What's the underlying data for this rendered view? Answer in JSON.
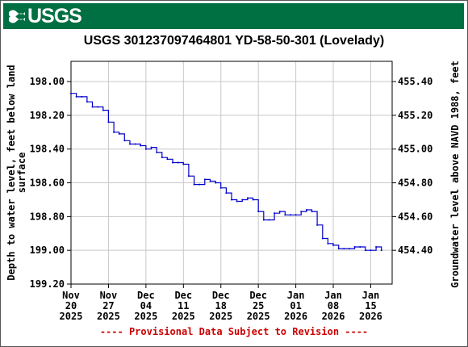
{
  "header": {
    "logo_text": "USGS",
    "bg_color": "#006f41"
  },
  "footnote": "---- Provisional Data Subject to Revision ----",
  "chart_data": {
    "type": "line",
    "title": "USGS 301237097464801 YD-58-50-301 (Lovelady)",
    "ylabel": "Depth to water level, feet below land surface",
    "y2label": "Groundwater level above NAVD 1988, feet",
    "ylim": [
      199.2,
      197.88
    ],
    "y_inverted": true,
    "y_ticks": [
      "198.00",
      "198.20",
      "198.40",
      "198.60",
      "198.80",
      "199.00",
      "199.20"
    ],
    "y_tick_values": [
      198.0,
      198.2,
      198.4,
      198.6,
      198.8,
      199.0,
      199.2
    ],
    "y2_ticks": [
      "455.40",
      "455.20",
      "455.00",
      "454.80",
      "454.60",
      "454.40"
    ],
    "y2_tick_values": [
      455.4,
      455.2,
      455.0,
      454.8,
      454.6,
      454.4
    ],
    "y2_offset": 653.4,
    "x_range": [
      "2025-11-20",
      "2026-01-19"
    ],
    "x_ticks": [
      {
        "date": "2025-11-20",
        "label": [
          "Nov",
          "20",
          "2025"
        ]
      },
      {
        "date": "2025-11-27",
        "label": [
          "Nov",
          "27",
          "2025"
        ]
      },
      {
        "date": "2025-12-04",
        "label": [
          "Dec",
          "04",
          "2025"
        ]
      },
      {
        "date": "2025-12-11",
        "label": [
          "Dec",
          "11",
          "2025"
        ]
      },
      {
        "date": "2025-12-18",
        "label": [
          "Dec",
          "18",
          "2025"
        ]
      },
      {
        "date": "2025-12-25",
        "label": [
          "Dec",
          "25",
          "2025"
        ]
      },
      {
        "date": "2026-01-01",
        "label": [
          "Jan",
          "01",
          "2026"
        ]
      },
      {
        "date": "2026-01-08",
        "label": [
          "Jan",
          "08",
          "2026"
        ]
      },
      {
        "date": "2026-01-15",
        "label": [
          "Jan",
          "15",
          "2026"
        ]
      }
    ],
    "grid": true,
    "line_color": "#0000cc",
    "series": [
      {
        "x": [
          "2025-11-20",
          "2025-11-21",
          "2025-11-22",
          "2025-11-23",
          "2025-11-24",
          "2025-11-25",
          "2025-11-26",
          "2025-11-27",
          "2025-11-28",
          "2025-11-29",
          "2025-11-30",
          "2025-12-01",
          "2025-12-02",
          "2025-12-03",
          "2025-12-04",
          "2025-12-05",
          "2025-12-06",
          "2025-12-07",
          "2025-12-08",
          "2025-12-09",
          "2025-12-10",
          "2025-12-11",
          "2025-12-12",
          "2025-12-13",
          "2025-12-14",
          "2025-12-15",
          "2025-12-16",
          "2025-12-17",
          "2025-12-18",
          "2025-12-19",
          "2025-12-20",
          "2025-12-21",
          "2025-12-22",
          "2025-12-23",
          "2025-12-24",
          "2025-12-25",
          "2025-12-26",
          "2025-12-27",
          "2025-12-28",
          "2025-12-29",
          "2025-12-30",
          "2025-12-31",
          "2026-01-01",
          "2026-01-02",
          "2026-01-03",
          "2026-01-04",
          "2026-01-05",
          "2026-01-06",
          "2026-01-07",
          "2026-01-08",
          "2026-01-09",
          "2026-01-10",
          "2026-01-11",
          "2026-01-12",
          "2026-01-13",
          "2026-01-14",
          "2026-01-15",
          "2026-01-16",
          "2026-01-17"
        ],
        "values": [
          198.07,
          198.09,
          198.09,
          198.12,
          198.15,
          198.15,
          198.17,
          198.24,
          198.3,
          198.31,
          198.35,
          198.37,
          198.37,
          198.38,
          198.4,
          198.39,
          198.42,
          198.45,
          198.46,
          198.48,
          198.48,
          198.49,
          198.56,
          198.61,
          198.61,
          198.58,
          198.59,
          198.6,
          198.63,
          198.66,
          198.7,
          198.71,
          198.7,
          198.69,
          198.7,
          198.77,
          198.82,
          198.82,
          198.78,
          198.77,
          198.79,
          198.79,
          198.79,
          198.77,
          198.76,
          198.77,
          198.85,
          198.93,
          198.96,
          198.97,
          198.99,
          198.99,
          198.99,
          198.98,
          198.98,
          199.0,
          199.0,
          198.98,
          199.0
        ]
      }
    ]
  }
}
